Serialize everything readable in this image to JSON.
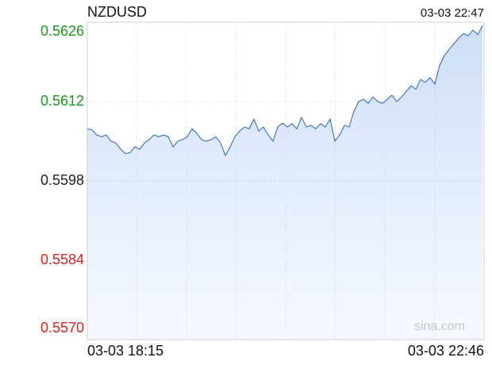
{
  "chart_data": {
    "type": "line",
    "title": "NZDUSD",
    "timestamp": "03-03 22:47",
    "watermark": "sina.com",
    "categories": [
      "03-03 18:15",
      null,
      null,
      null,
      null,
      null,
      null,
      null,
      null,
      null,
      null,
      null,
      null,
      null,
      null,
      null,
      null,
      null,
      null,
      null,
      null,
      null,
      null,
      null,
      null,
      null,
      null,
      null,
      null,
      null,
      null,
      null,
      null,
      null,
      null,
      null,
      null,
      null,
      null,
      null,
      null,
      null,
      null,
      null,
      null,
      null,
      null,
      null,
      null,
      null,
      null,
      null,
      null,
      null,
      null,
      null,
      null,
      null,
      null,
      null,
      null,
      null,
      null,
      null,
      null,
      null,
      null,
      null,
      null,
      null,
      null,
      null,
      null,
      null,
      null,
      null,
      null,
      null,
      null,
      null,
      null,
      null,
      null,
      "03-03 22:46"
    ],
    "series": [
      {
        "name": "NZDUSD",
        "color": "#3a6cc0",
        "values": [
          0.56072,
          0.5607,
          0.56061,
          0.56058,
          0.56061,
          0.5605,
          0.56047,
          0.56036,
          0.56028,
          0.5603,
          0.5604,
          0.56036,
          0.56047,
          0.56053,
          0.56061,
          0.56058,
          0.56061,
          0.56058,
          0.5604,
          0.5605,
          0.56053,
          0.56058,
          0.56072,
          0.56064,
          0.56053,
          0.5605,
          0.56053,
          0.56058,
          0.56047,
          0.56025,
          0.5604,
          0.56058,
          0.56068,
          0.56075,
          0.56072,
          0.56089,
          0.56068,
          0.56075,
          0.56061,
          0.5605,
          0.56075,
          0.56082,
          0.56075,
          0.56081,
          0.56072,
          0.56092,
          0.56075,
          0.56078,
          0.56072,
          0.56081,
          0.56075,
          0.56089,
          0.5605,
          0.56061,
          0.56078,
          0.56075,
          0.56103,
          0.5612,
          0.56124,
          0.56117,
          0.56128,
          0.5612,
          0.56117,
          0.56124,
          0.56131,
          0.5612,
          0.56128,
          0.56138,
          0.56148,
          0.56142,
          0.56159,
          0.56154,
          0.56162,
          0.56151,
          0.56184,
          0.56201,
          0.56212,
          0.56222,
          0.56232,
          0.5624,
          0.56236,
          0.56246,
          0.56238,
          0.56254
        ]
      }
    ],
    "ylim": [
      0.557,
      0.5626
    ],
    "yticks": [
      {
        "value": 0.557,
        "label": "0.5570"
      },
      0.5584,
      0.5598,
      0.5612,
      0.5626
    ],
    "prev_close": 0.5598,
    "up_color": "#1a9a1a",
    "down_color": "#e0201c",
    "flat_color": "#222222",
    "grid": true
  }
}
